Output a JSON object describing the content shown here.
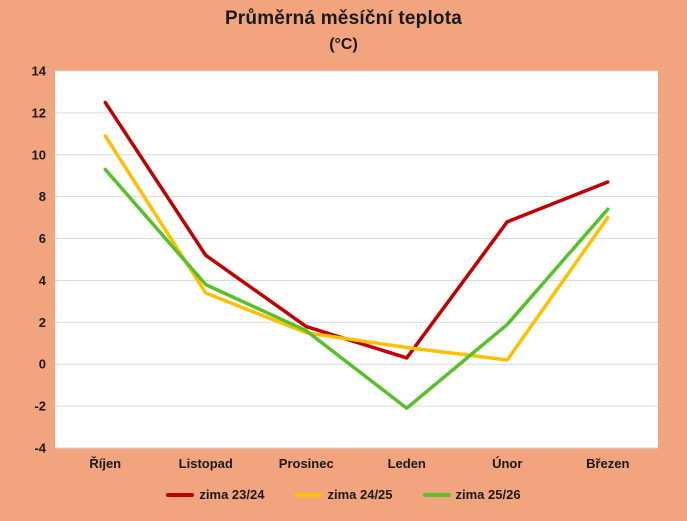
{
  "chart_data": {
    "type": "line",
    "title": "Průměrná měsíční teplota",
    "subtitle": "(°C)",
    "categories": [
      "Říjen",
      "Listopad",
      "Prosinec",
      "Leden",
      "Únor",
      "Březen"
    ],
    "series": [
      {
        "name": "zima 23/24",
        "color": "#C00000",
        "values": [
          12.5,
          5.2,
          1.8,
          0.3,
          6.8,
          8.7
        ]
      },
      {
        "name": "zima 24/25",
        "color": "#FFC000",
        "values": [
          10.9,
          3.4,
          1.5,
          0.8,
          0.2,
          7.0
        ]
      },
      {
        "name": "zima 25/26",
        "color": "#56C12B",
        "values": [
          9.3,
          3.8,
          1.6,
          -2.1,
          1.9,
          7.4
        ]
      }
    ],
    "ylim": [
      -4,
      14
    ],
    "ytick_step": 2,
    "ytick_labels": [
      "-4",
      "-2",
      "0",
      "2",
      "4",
      "6",
      "8",
      "10",
      "12",
      "14"
    ],
    "grid": "horizontal",
    "legend_position": "bottom",
    "colors": {
      "background": "#F2A47E",
      "plot_background": "#FFFFFF",
      "gridline": "#D9D9D9",
      "text": "#1a1a1a"
    }
  }
}
